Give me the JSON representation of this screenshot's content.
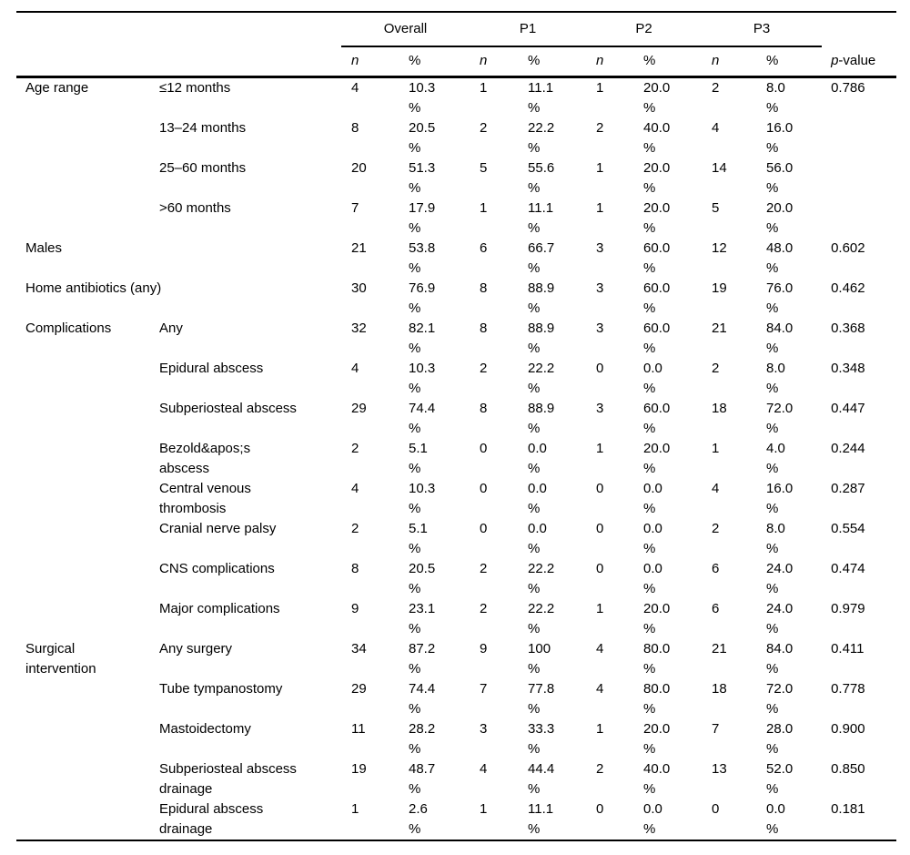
{
  "table": {
    "col_groups": [
      "Overall",
      "P1",
      "P2",
      "P3"
    ],
    "subheader": {
      "n": "n",
      "pct": "%",
      "p_italic": "p",
      "p_rest": "-value"
    },
    "percent_sign": "%",
    "rows": [
      {
        "group": "Age range",
        "label": "≤12 months",
        "n": [
          "4",
          "1",
          "1",
          "2"
        ],
        "pct": [
          "10.3",
          "11.1",
          "20.0",
          "8.0"
        ],
        "p": "0.786"
      },
      {
        "group": "",
        "label": "13–24 months",
        "n": [
          "8",
          "2",
          "2",
          "4"
        ],
        "pct": [
          "20.5",
          "22.2",
          "40.0",
          "16.0"
        ],
        "p": ""
      },
      {
        "group": "",
        "label": "25–60 months",
        "n": [
          "20",
          "5",
          "1",
          "14"
        ],
        "pct": [
          "51.3",
          "55.6",
          "20.0",
          "56.0"
        ],
        "p": ""
      },
      {
        "group": "",
        "label": ">60 months",
        "n": [
          "7",
          "1",
          "1",
          "5"
        ],
        "pct": [
          "17.9",
          "11.1",
          "20.0",
          "20.0"
        ],
        "p": ""
      },
      {
        "group": "Males",
        "label": null,
        "n": [
          "21",
          "6",
          "3",
          "12"
        ],
        "pct": [
          "53.8",
          "66.7",
          "60.0",
          "48.0"
        ],
        "p": "0.602"
      },
      {
        "group": "Home antibiotics (any)",
        "label": null,
        "n": [
          "30",
          "8",
          "3",
          "19"
        ],
        "pct": [
          "76.9",
          "88.9",
          "60.0",
          "76.0"
        ],
        "p": "0.462"
      },
      {
        "group": "Complications",
        "label": "Any",
        "n": [
          "32",
          "8",
          "3",
          "21"
        ],
        "pct": [
          "82.1",
          "88.9",
          "60.0",
          "84.0"
        ],
        "p": "0.368"
      },
      {
        "group": "",
        "label": "Epidural abscess",
        "n": [
          "4",
          "2",
          "0",
          "2"
        ],
        "pct": [
          "10.3",
          "22.2",
          "0.0",
          "8.0"
        ],
        "p": "0.348"
      },
      {
        "group": "",
        "label": "Subperiosteal abscess",
        "n": [
          "29",
          "8",
          "3",
          "18"
        ],
        "pct": [
          "74.4",
          "88.9",
          "60.0",
          "72.0"
        ],
        "p": "0.447"
      },
      {
        "group": "",
        "label": "Bezold&apos;s\nabscess",
        "n": [
          "2",
          "0",
          "1",
          "1"
        ],
        "pct": [
          "5.1",
          "0.0",
          "20.0",
          "4.0"
        ],
        "p": "0.244"
      },
      {
        "group": "",
        "label": "Central venous\nthrombosis",
        "n": [
          "4",
          "0",
          "0",
          "4"
        ],
        "pct": [
          "10.3",
          "0.0",
          "0.0",
          "16.0"
        ],
        "p": "0.287"
      },
      {
        "group": "",
        "label": "Cranial nerve palsy",
        "n": [
          "2",
          "0",
          "0",
          "2"
        ],
        "pct": [
          "5.1",
          "0.0",
          "0.0",
          "8.0"
        ],
        "p": "0.554"
      },
      {
        "group": "",
        "label": "CNS complications",
        "n": [
          "8",
          "2",
          "0",
          "6"
        ],
        "pct": [
          "20.5",
          "22.2",
          "0.0",
          "24.0"
        ],
        "p": "0.474"
      },
      {
        "group": "",
        "label": "Major complications",
        "n": [
          "9",
          "2",
          "1",
          "6"
        ],
        "pct": [
          "23.1",
          "22.2",
          "20.0",
          "24.0"
        ],
        "p": "0.979"
      },
      {
        "group": "Surgical\nintervention",
        "label": "Any surgery",
        "n": [
          "34",
          "9",
          "4",
          "21"
        ],
        "pct": [
          "87.2",
          "100",
          "80.0",
          "84.0"
        ],
        "p": "0.411"
      },
      {
        "group": "",
        "label": "Tube tympanostomy",
        "n": [
          "29",
          "7",
          "4",
          "18"
        ],
        "pct": [
          "74.4",
          "77.8",
          "80.0",
          "72.0"
        ],
        "p": "0.778"
      },
      {
        "group": "",
        "label": "Mastoidectomy",
        "n": [
          "11",
          "3",
          "1",
          "7"
        ],
        "pct": [
          "28.2",
          "33.3",
          "20.0",
          "28.0"
        ],
        "p": "0.900"
      },
      {
        "group": "",
        "label": "Subperiosteal abscess\ndrainage",
        "n": [
          "19",
          "4",
          "2",
          "13"
        ],
        "pct": [
          "48.7",
          "44.4",
          "40.0",
          "52.0"
        ],
        "p": "0.850"
      },
      {
        "group": "",
        "label": "Epidural abscess\ndrainage",
        "n": [
          "1",
          "1",
          "0",
          "0"
        ],
        "pct": [
          "2.6",
          "11.1",
          "0.0",
          "0.0"
        ],
        "p": "0.181"
      }
    ]
  }
}
